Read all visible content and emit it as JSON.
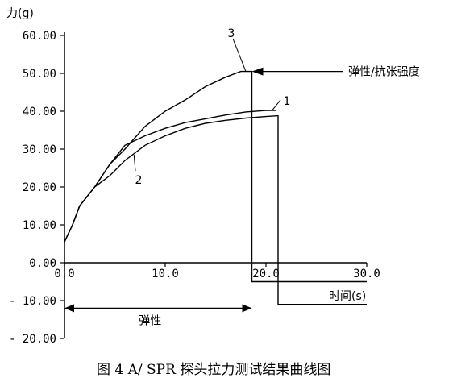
{
  "chart_data": {
    "type": "line",
    "title": "",
    "caption": "图 4    A/ SPR 探头拉力测试结果曲线图",
    "ylabel": "力(g)",
    "xlabel": "时间(s)",
    "xlim": [
      0,
      30
    ],
    "ylim": [
      -20,
      60
    ],
    "x_ticks": [
      "0.0",
      "10.0",
      "20.0",
      "30.0"
    ],
    "y_ticks": [
      "60.00",
      "50.00",
      "40.00",
      "30.00",
      "20.00",
      "10.00",
      "0.00",
      "- 10.00",
      "- 20.00"
    ],
    "y_tick_values": [
      60,
      50,
      40,
      30,
      20,
      10,
      0,
      -10,
      -20
    ],
    "x_tick_values": [
      0,
      10,
      20,
      30
    ],
    "series": [
      {
        "name": "3",
        "points": [
          [
            0,
            5.5
          ],
          [
            0.8,
            10
          ],
          [
            1.5,
            15
          ],
          [
            3,
            20
          ],
          [
            4.5,
            26
          ],
          [
            6,
            30
          ],
          [
            8,
            36
          ],
          [
            10,
            40
          ],
          [
            12,
            43
          ],
          [
            14,
            46.5
          ],
          [
            16,
            49
          ],
          [
            17.5,
            50.5
          ],
          [
            18.6,
            50.5
          ],
          [
            18.6,
            -5
          ],
          [
            30,
            -5
          ]
        ]
      },
      {
        "name": "1",
        "points": [
          [
            0,
            5.5
          ],
          [
            0.8,
            10
          ],
          [
            1.5,
            15
          ],
          [
            3,
            20
          ],
          [
            4.5,
            26
          ],
          [
            6,
            31
          ],
          [
            8,
            33.5
          ],
          [
            10,
            35.5
          ],
          [
            12,
            37
          ],
          [
            14,
            38
          ],
          [
            16,
            39
          ],
          [
            18,
            39.8
          ],
          [
            20,
            40.2
          ],
          [
            21,
            40.2
          ]
        ]
      },
      {
        "name": "2",
        "points": [
          [
            0,
            5.5
          ],
          [
            0.8,
            10
          ],
          [
            1.5,
            15
          ],
          [
            3,
            20
          ],
          [
            4.5,
            23
          ],
          [
            6,
            27
          ],
          [
            8,
            31
          ],
          [
            10,
            33.5
          ],
          [
            12,
            35.5
          ],
          [
            14,
            36.8
          ],
          [
            16,
            37.6
          ],
          [
            18,
            38.2
          ],
          [
            20,
            38.6
          ],
          [
            21.2,
            38.8
          ],
          [
            21.2,
            -11
          ],
          [
            30,
            -11
          ]
        ]
      }
    ],
    "annotations": {
      "strength_label": "弹性/抗张强度",
      "strength_y": 50.5,
      "elastic_label": "弹性",
      "elastic_range": [
        0,
        18.6
      ],
      "elastic_y": -12
    },
    "grid": false,
    "legend": "none"
  }
}
